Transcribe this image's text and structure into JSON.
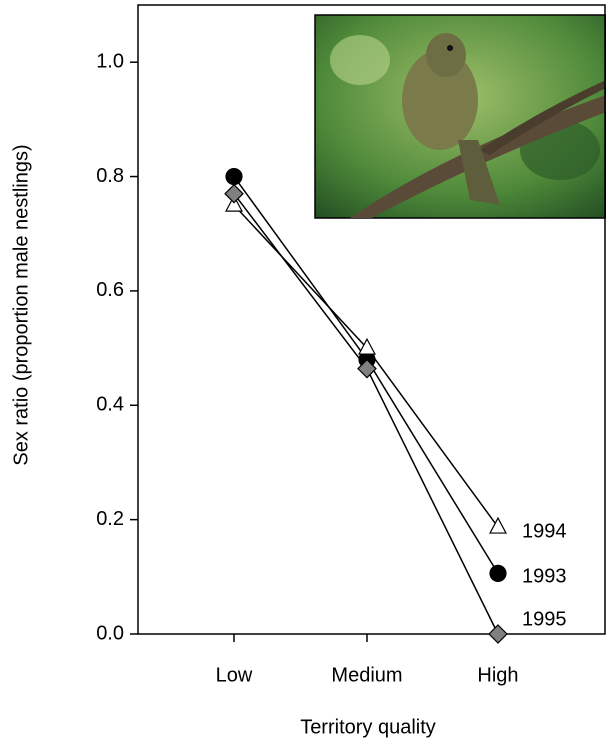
{
  "chart_data": {
    "type": "line",
    "x_label": "Territory quality",
    "y_label": "Sex ratio (proportion male nestlings)",
    "categories": [
      "Low",
      "Medium",
      "High"
    ],
    "series": [
      {
        "name": "1993",
        "color": "#000000",
        "marker": "circle",
        "values": [
          0.8,
          0.48,
          0.106
        ]
      },
      {
        "name": "1994",
        "color": "#ffffff",
        "marker": "triangle",
        "values": [
          0.75,
          0.5,
          0.187
        ]
      },
      {
        "name": "1995",
        "color": "#808080",
        "marker": "diamond",
        "values": [
          0.77,
          0.464,
          0.0
        ]
      }
    ],
    "ylim": [
      0,
      1.1
    ],
    "yticks": [
      {
        "value": 0,
        "label": "0.0"
      },
      {
        "value": 0.2,
        "label": "0.2"
      },
      {
        "value": 0.4,
        "label": "0.4"
      },
      {
        "value": 0.6,
        "label": "0.6"
      },
      {
        "value": 0.8,
        "label": "0.8"
      },
      {
        "value": 1.0,
        "label": "1.0"
      }
    ]
  }
}
